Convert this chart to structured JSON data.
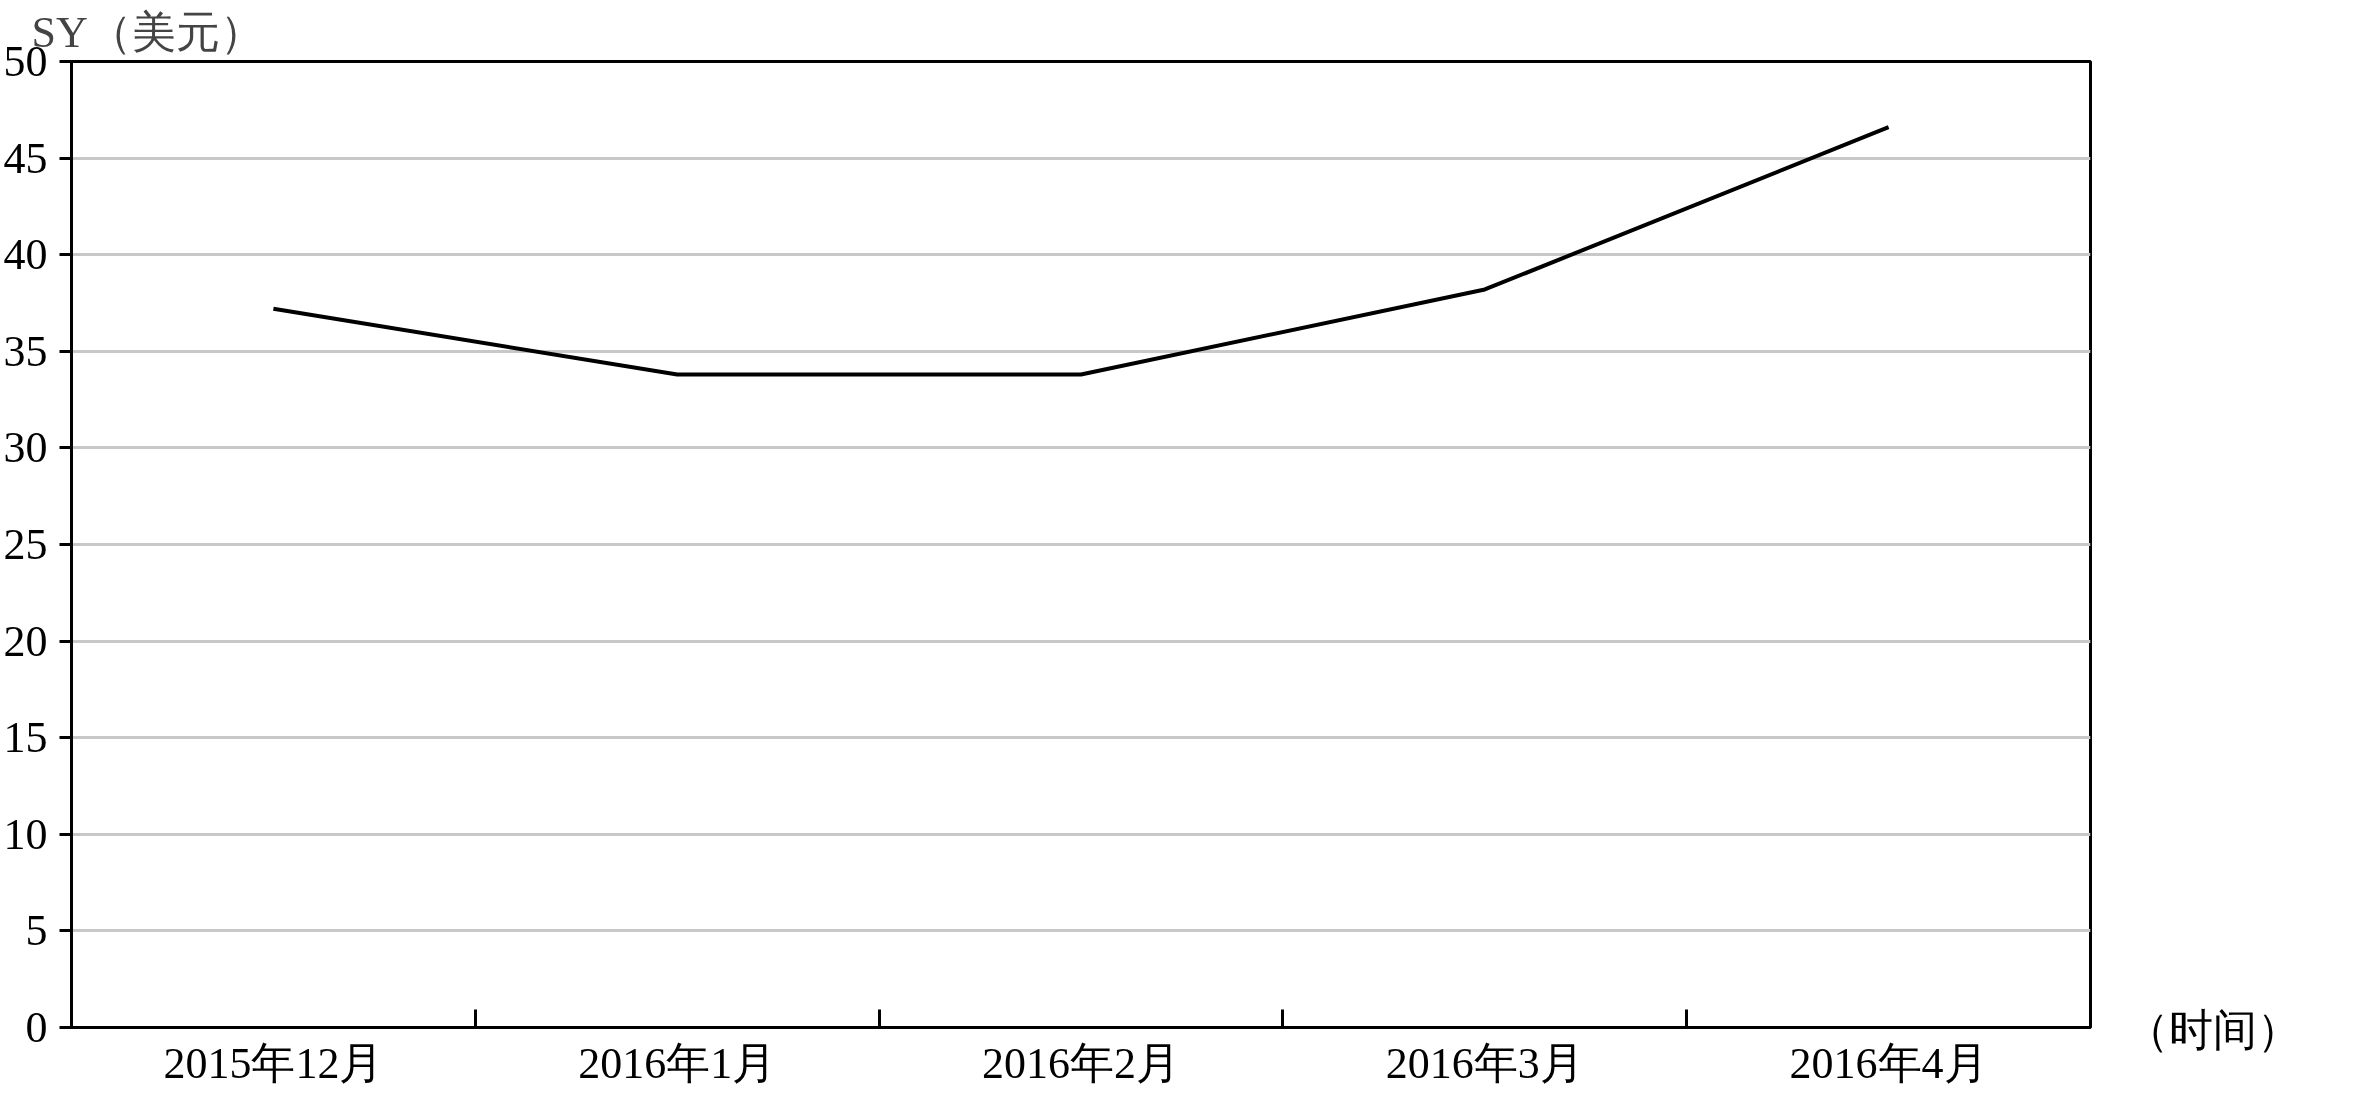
{
  "chart_data": {
    "type": "line",
    "ylabel": "SY（美元）",
    "xlabel": "（时间）",
    "categories": [
      "2015年12月",
      "2016年1月",
      "2016年2月",
      "2016年3月",
      "2016年4月"
    ],
    "series": [
      {
        "color": "#000000",
        "values": [
          37.2,
          33.8,
          33.8,
          38.2,
          46.6
        ]
      }
    ],
    "ylim": [
      0,
      50
    ],
    "yticks": [
      0,
      5,
      10,
      15,
      20,
      25,
      30,
      35,
      40,
      45,
      50
    ],
    "grid": "y",
    "marker": "none",
    "line_style": "solid"
  }
}
